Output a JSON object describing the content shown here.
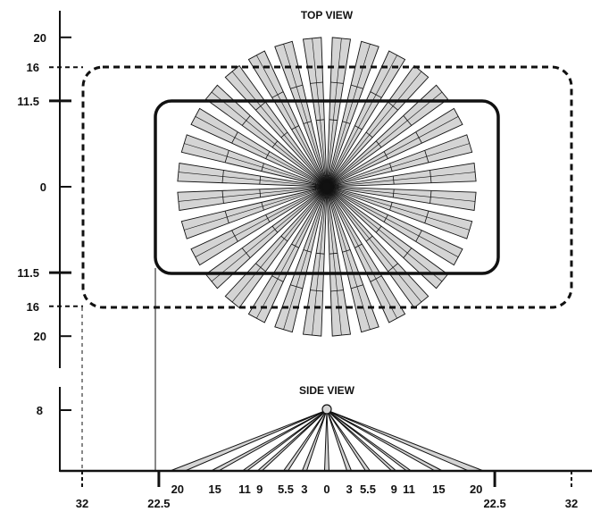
{
  "top_view": {
    "title": "TOP VIEW",
    "y_ticks": [
      {
        "label": "20",
        "value": -20,
        "style": "thin"
      },
      {
        "label": "16",
        "value": -16,
        "style": "dashed"
      },
      {
        "label": "11.5",
        "value": -11.5,
        "style": "thick"
      },
      {
        "label": "0",
        "value": 0,
        "style": "thin"
      },
      {
        "label": "11.5",
        "value": 11.5,
        "style": "thick"
      },
      {
        "label": "16",
        "value": 16,
        "style": "dashed"
      },
      {
        "label": "20",
        "value": 20,
        "style": "thin"
      }
    ],
    "inner_zone_halfwidth": 22.5,
    "inner_zone_halfheight": 11.5,
    "outer_zone_halfwidth": 32,
    "outer_zone_halfheight": 16,
    "spoke_count": 32,
    "spoke_inner_radius": 9,
    "spoke_mid_radius": 14,
    "spoke_outer_radius": 20
  },
  "side_view": {
    "title": "SIDE VIEW",
    "y_tick": {
      "label": "8",
      "value": 8
    },
    "x_labels": [
      {
        "label": "20",
        "value": -20
      },
      {
        "label": "15",
        "value": -15
      },
      {
        "label": "11",
        "value": -11
      },
      {
        "label": "9",
        "value": -9
      },
      {
        "label": "5.5",
        "value": -5.5
      },
      {
        "label": "3",
        "value": -3
      },
      {
        "label": "0",
        "value": 0
      },
      {
        "label": "3",
        "value": 3
      },
      {
        "label": "5.5",
        "value": 5.5
      },
      {
        "label": "9",
        "value": 9
      },
      {
        "label": "11",
        "value": 11
      },
      {
        "label": "15",
        "value": 15
      },
      {
        "label": "20",
        "value": 20
      }
    ],
    "ray_targets": [
      -21,
      -19,
      -15.5,
      -14.5,
      -11.3,
      -10.7,
      -9.3,
      -8.7,
      -5.8,
      -5.2,
      -3.3,
      -2.7,
      -0.3,
      0.3,
      2.7,
      3.3,
      5.2,
      5.8,
      8.7,
      9.3,
      10.7,
      11.3,
      14.5,
      15.5,
      19,
      21
    ]
  },
  "bottom_axis": [
    {
      "label": "32",
      "value": -32
    },
    {
      "label": "22.5",
      "value": -22.5
    },
    {
      "label": "22.5",
      "value": 22.5
    },
    {
      "label": "32",
      "value": 32
    }
  ],
  "colors": {
    "ink": "#111111",
    "fill": "#d4d4d4"
  }
}
